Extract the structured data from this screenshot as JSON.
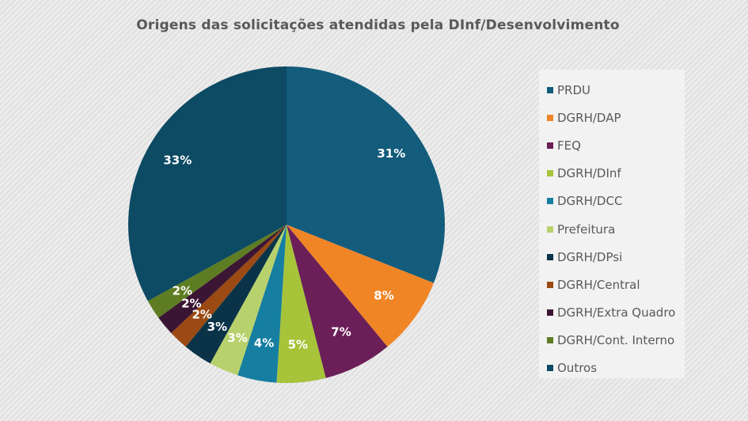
{
  "chart_data": {
    "type": "pie",
    "title": "Origens das solicitações atendidas pela DInf/Desenvolvimento",
    "legend_position": "right",
    "slices": [
      {
        "name": "PRDU",
        "value": 31,
        "label": "31%",
        "color": "#135c7b"
      },
      {
        "name": "DGRH/DAP",
        "value": 8,
        "label": "8%",
        "color": "#f08526"
      },
      {
        "name": "FEQ",
        "value": 7,
        "label": "7%",
        "color": "#6b1e57"
      },
      {
        "name": "DGRH/DInf",
        "value": 5,
        "label": "5%",
        "color": "#a6c33a"
      },
      {
        "name": "DGRH/DCC",
        "value": 4,
        "label": "4%",
        "color": "#167ea1"
      },
      {
        "name": "Prefeitura",
        "value": 3,
        "label": "3%",
        "color": "#b7d26c"
      },
      {
        "name": "DGRH/DPsi",
        "value": 3,
        "label": "3%",
        "color": "#0b3348"
      },
      {
        "name": "DGRH/Central",
        "value": 2,
        "label": "2%",
        "color": "#9a4a12"
      },
      {
        "name": "DGRH/Extra Quadro",
        "value": 2,
        "label": "2%",
        "color": "#3b1634"
      },
      {
        "name": "DGRH/Cont. Interno",
        "value": 2,
        "label": "2%",
        "color": "#5e7d23"
      },
      {
        "name": "Outros",
        "value": 33,
        "label": "33%",
        "color": "#0d4a63"
      }
    ]
  }
}
